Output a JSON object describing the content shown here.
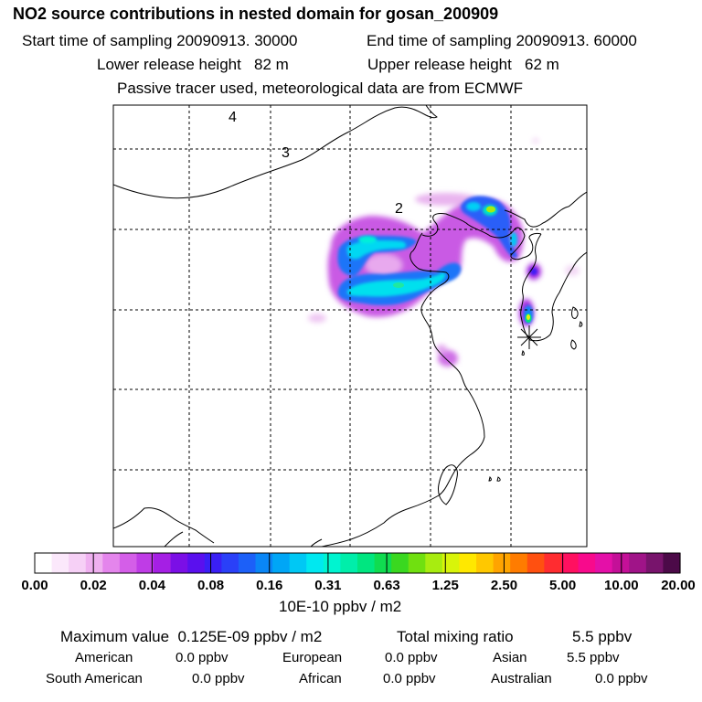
{
  "header": {
    "title": "NO2 source contributions in nested domain for gosan_200909",
    "start_label": "Start time of sampling 20090913. 30000",
    "end_label": "End time of sampling 20090913. 60000",
    "lower_label": "Lower release height   82 m",
    "upper_label": "Upper release height   62 m",
    "tracer_label": "Passive tracer used, meteorological data are from ECMWF"
  },
  "chart_data": {
    "type": "heatmap",
    "title": "NO2 source contributions in nested domain for gosan_200909",
    "units": "10E-10 ppbv / m2",
    "contour_labels": [
      "4",
      "3",
      "2"
    ],
    "receptor_marker": "asterisk",
    "colorbar": {
      "ticks": [
        "0.00",
        "0.02",
        "0.04",
        "0.08",
        "0.16",
        "0.31",
        "0.63",
        "1.25",
        "2.50",
        "5.00",
        "10.00",
        "20.00"
      ],
      "colors": [
        "#ffffff",
        "#fbe8fb",
        "#f6d0f6",
        "#efb0f0",
        "#e485ec",
        "#d45ee8",
        "#bf3ce6",
        "#a51fe4",
        "#7b0fe6",
        "#5a10ee",
        "#3a1ff5",
        "#2a40f8",
        "#1c60f8",
        "#0a86f6",
        "#00a6f6",
        "#00c8f4",
        "#00e8f0",
        "#00f4d0",
        "#00eeaa",
        "#00e680",
        "#10dc50",
        "#3ad820",
        "#70e010",
        "#a8ec10",
        "#d8f40a",
        "#ffe800",
        "#ffc800",
        "#ffa400",
        "#ff7c00",
        "#ff5010",
        "#ff2c30",
        "#ff1060",
        "#f80a8c",
        "#e410a8",
        "#c41098",
        "#a01488",
        "#78146c",
        "#4c0a48"
      ]
    }
  },
  "footer": {
    "max_label": "Maximum value  0.125E-09 ppbv / m2",
    "total_label": "Total mixing ratio",
    "total_value": "5.5 ppbv",
    "regions": [
      {
        "name": "American",
        "value": "0.0 ppbv"
      },
      {
        "name": "European",
        "value": "0.0 ppbv"
      },
      {
        "name": "Asian",
        "value": "5.5 ppbv"
      },
      {
        "name": "South American",
        "value": "0.0 ppbv"
      },
      {
        "name": "African",
        "value": "0.0 ppbv"
      },
      {
        "name": "Australian",
        "value": "0.0 ppbv"
      }
    ]
  }
}
